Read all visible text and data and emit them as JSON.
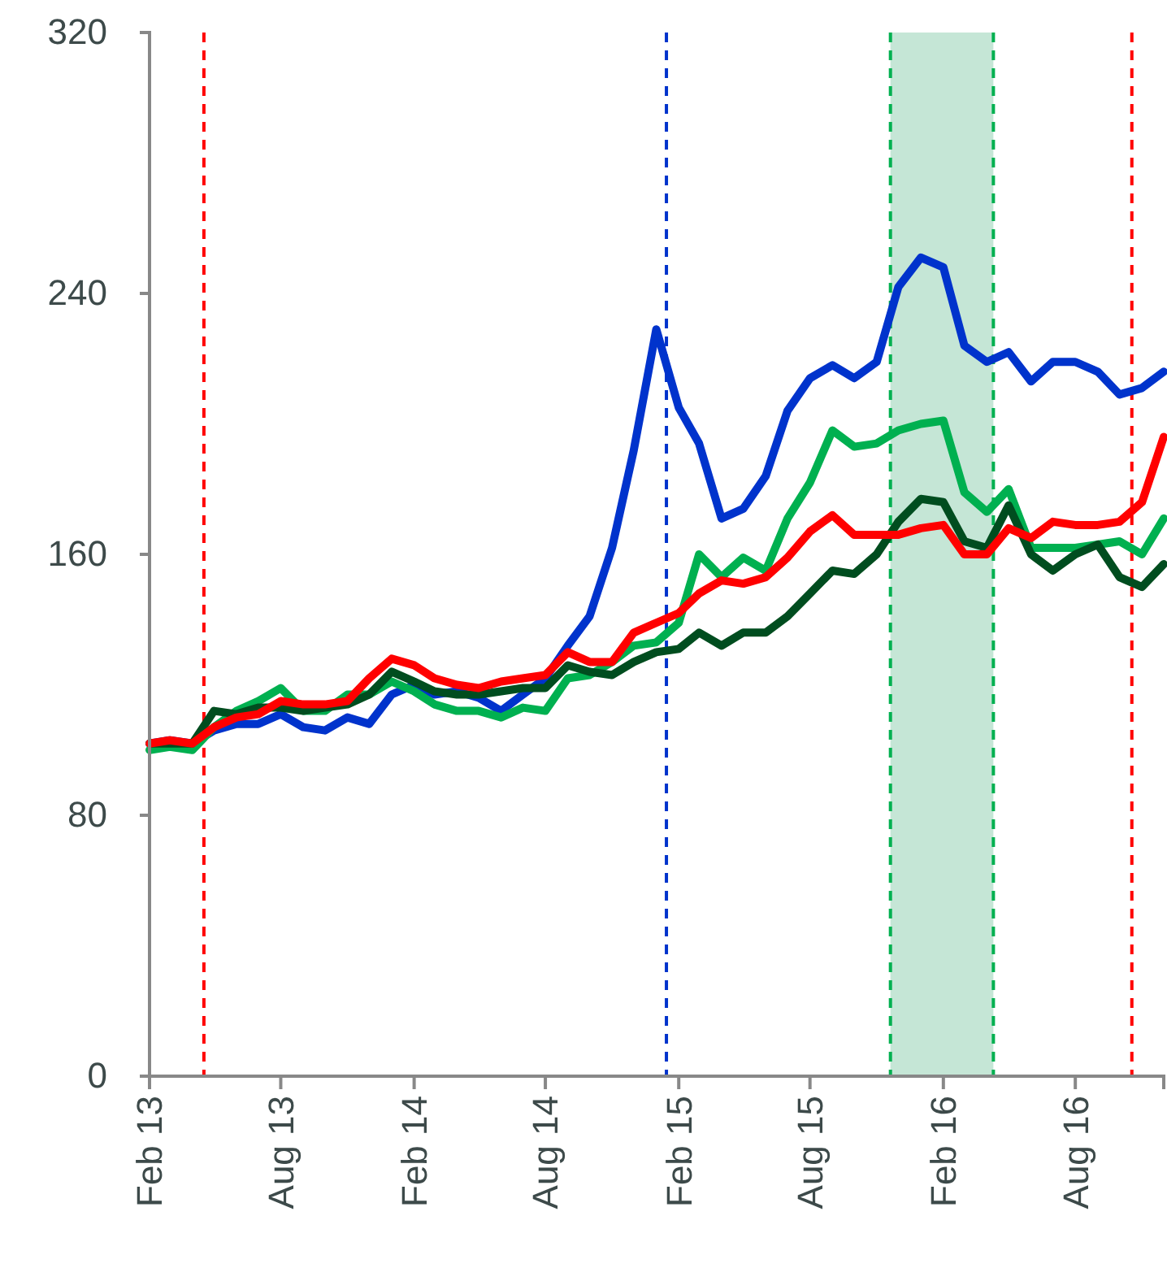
{
  "chart_data": {
    "type": "line",
    "x": [
      "2013-02",
      "2013-03",
      "2013-04",
      "2013-05",
      "2013-06",
      "2013-07",
      "2013-08",
      "2013-09",
      "2013-10",
      "2013-11",
      "2013-12",
      "2014-01",
      "2014-02",
      "2014-03",
      "2014-04",
      "2014-05",
      "2014-06",
      "2014-07",
      "2014-08",
      "2014-09",
      "2014-10",
      "2014-11",
      "2014-12",
      "2015-01",
      "2015-02",
      "2015-03",
      "2015-04",
      "2015-05",
      "2015-06",
      "2015-07",
      "2015-08",
      "2015-09",
      "2015-10",
      "2015-11",
      "2015-12",
      "2016-01",
      "2016-02",
      "2016-03",
      "2016-04",
      "2016-05",
      "2016-06",
      "2016-07",
      "2016-08",
      "2016-09",
      "2016-10",
      "2016-11",
      "2016-12"
    ],
    "series": [
      {
        "color": "#0033cc",
        "values": [
          102,
          103,
          102,
          106,
          108,
          108,
          111,
          107,
          106,
          110,
          108,
          117,
          120,
          117,
          118,
          116,
          112,
          117,
          122,
          132,
          141,
          162,
          192,
          229,
          205,
          194,
          171,
          174,
          184,
          204,
          214,
          218,
          214,
          219,
          242,
          251,
          248,
          224,
          219,
          222,
          213,
          219,
          219,
          216,
          209,
          211,
          216
        ]
      },
      {
        "color": "#00b050",
        "values": [
          100,
          101,
          100,
          107,
          112,
          115,
          119,
          112,
          112,
          117,
          117,
          121,
          118,
          114,
          112,
          112,
          110,
          113,
          112,
          122,
          123,
          127,
          132,
          133,
          139,
          160,
          153,
          159,
          155,
          171,
          182,
          198,
          193,
          194,
          198,
          200,
          201,
          179,
          173,
          180,
          162,
          162,
          162,
          163,
          164,
          160,
          171
        ]
      },
      {
        "color": "#004d1f",
        "values": [
          102,
          102,
          102,
          112,
          111,
          113,
          113,
          112,
          113,
          114,
          117,
          124,
          121,
          118,
          117,
          117,
          118,
          119,
          119,
          126,
          124,
          123,
          127,
          130,
          131,
          136,
          132,
          136,
          136,
          141,
          148,
          155,
          154,
          160,
          170,
          177,
          176,
          164,
          162,
          175,
          160,
          155,
          160,
          163,
          153,
          150,
          157
        ]
      },
      {
        "color": "#ff0000",
        "values": [
          102,
          103,
          102,
          107,
          110,
          111,
          115,
          114,
          114,
          115,
          122,
          128,
          126,
          122,
          120,
          119,
          121,
          122,
          123,
          130,
          127,
          127,
          136,
          139,
          142,
          148,
          152,
          151,
          153,
          159,
          167,
          172,
          166,
          166,
          166,
          168,
          169,
          160,
          160,
          168,
          165,
          170,
          169,
          169,
          170,
          176,
          196
        ]
      }
    ],
    "xlim": [
      "2013-02",
      "2016-12"
    ],
    "xticks": [
      {
        "value": "2013-02",
        "label": "Feb 13"
      },
      {
        "value": "2013-08",
        "label": "Aug 13"
      },
      {
        "value": "2014-02",
        "label": "Feb 14"
      },
      {
        "value": "2014-08",
        "label": "Aug 14"
      },
      {
        "value": "2015-02",
        "label": "Feb 15"
      },
      {
        "value": "2015-08",
        "label": "Aug 15"
      },
      {
        "value": "2016-02",
        "label": "Feb 16"
      },
      {
        "value": "2016-08",
        "label": "Aug 16"
      }
    ],
    "ylim": [
      0,
      320
    ],
    "yticks": [
      0,
      80,
      160,
      240,
      320
    ],
    "grid": false,
    "line_style": "solid",
    "marker": "none",
    "bands": [
      {
        "axis": "x",
        "from": "2015-11-20",
        "to": "2016-04-10",
        "color": "#c5e6d6"
      }
    ],
    "ref_lines": [
      {
        "axis": "x",
        "value": "2013-04-17",
        "color": "#ff0000",
        "line_style": "dashed"
      },
      {
        "axis": "x",
        "value": "2015-01-15",
        "color": "#0033cc",
        "line_style": "dashed"
      },
      {
        "axis": "x",
        "value": "2015-11-20",
        "color": "#00b050",
        "line_style": "dashed"
      },
      {
        "axis": "x",
        "value": "2016-04-10",
        "color": "#00b050",
        "line_style": "dashed"
      },
      {
        "axis": "x",
        "value": "2016-10-18",
        "color": "#ff0000",
        "line_style": "dashed"
      }
    ]
  }
}
